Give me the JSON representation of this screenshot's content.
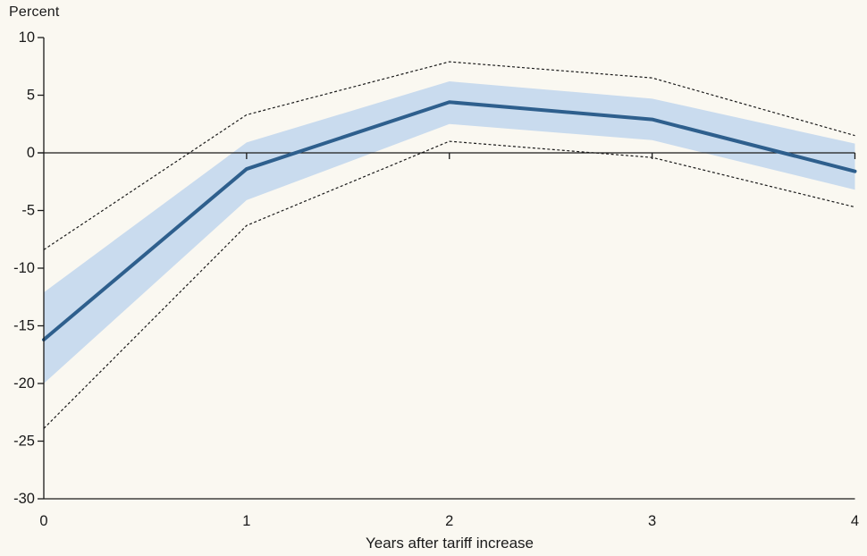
{
  "chart_data": {
    "type": "line",
    "title": "",
    "ylabel": "Percent",
    "xlabel": "Years after tariff increase",
    "x": [
      0,
      1,
      2,
      3,
      4
    ],
    "xticks": [
      0,
      1,
      2,
      3,
      4
    ],
    "xlim": [
      0,
      4
    ],
    "ylim": [
      -30,
      10
    ],
    "yticks": [
      10,
      5,
      0,
      -5,
      -10,
      -15,
      -20,
      -25,
      -30
    ],
    "grid": false,
    "zero_line": true,
    "legend": "none",
    "series": [
      {
        "name": "point-estimate",
        "role": "line",
        "values": [
          -16.2,
          -1.4,
          4.4,
          2.9,
          -1.6
        ]
      },
      {
        "name": "confidence-band-upper",
        "role": "band-upper",
        "values": [
          -12.1,
          0.9,
          6.2,
          4.7,
          0.8
        ]
      },
      {
        "name": "confidence-band-lower",
        "role": "band-lower",
        "values": [
          -20.0,
          -4.1,
          2.5,
          1.1,
          -3.2
        ]
      },
      {
        "name": "outer-confidence-upper",
        "role": "dashed",
        "values": [
          -8.4,
          3.3,
          7.9,
          6.5,
          1.5
        ]
      },
      {
        "name": "outer-confidence-lower",
        "role": "dashed",
        "values": [
          -23.9,
          -6.3,
          1.0,
          -0.4,
          -4.7
        ]
      }
    ],
    "colors": {
      "background": "#FAF8F1",
      "line": "#2E5F8D",
      "band": "#C9DBEE",
      "dashed": "#1A1A1A",
      "axis": "#1A1A1A",
      "text": "#1A1A1A"
    }
  }
}
